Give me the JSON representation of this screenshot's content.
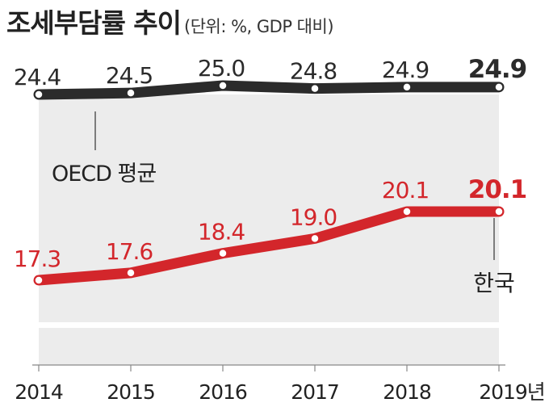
{
  "title": "조세부담률 추이",
  "subtitle": "(단위: %, GDP 대비)",
  "chart_data": {
    "type": "line",
    "categories": [
      "2014",
      "2015",
      "2016",
      "2017",
      "2018",
      "2019"
    ],
    "x_unit_suffix": "년",
    "series": [
      {
        "name": "OECD 평균",
        "color": "#2b2b2b",
        "values": [
          24.4,
          24.5,
          25.0,
          24.8,
          24.9,
          24.9
        ],
        "labels": [
          "24.4",
          "24.5",
          "25.0",
          "24.8",
          "24.9",
          "24.9"
        ]
      },
      {
        "name": "한국",
        "color": "#d3262b",
        "values": [
          17.3,
          17.6,
          18.4,
          19.0,
          20.1,
          20.1
        ],
        "labels": [
          "17.3",
          "17.6",
          "18.4",
          "19.0",
          "20.1",
          "20.1"
        ]
      }
    ],
    "axis_break": true,
    "grid": false,
    "legend": "inline labels"
  }
}
